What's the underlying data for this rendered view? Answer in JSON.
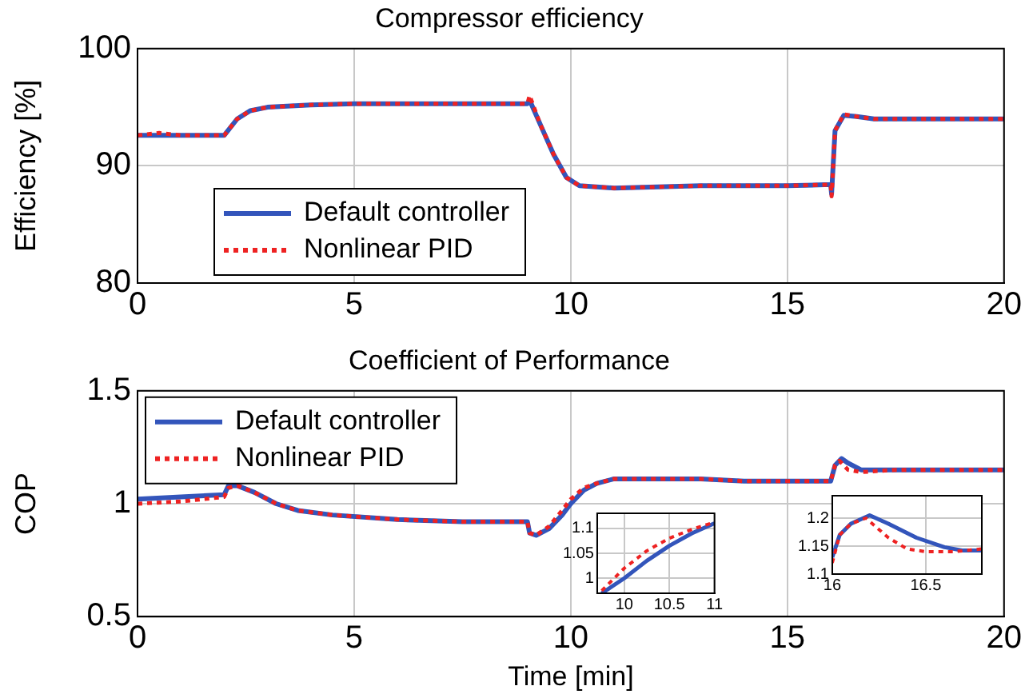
{
  "chart_data": [
    {
      "type": "line",
      "title": "Compressor efficiency",
      "ylabel": "Efficiency [%]",
      "xlim": [
        0,
        20
      ],
      "xticks": [
        0,
        5,
        10,
        15,
        20
      ],
      "ylim": [
        80,
        100
      ],
      "yticks": [
        80,
        90,
        100
      ],
      "grid": true,
      "legend": "bottom left",
      "series": [
        {
          "name": "Default controller",
          "color": "#3355bb",
          "line_style": "solid",
          "x": [
            0,
            1,
            2,
            2.3,
            2.6,
            3,
            4,
            5,
            7,
            9,
            9.05,
            9.3,
            9.6,
            9.9,
            10.2,
            11,
            12,
            13,
            14,
            15,
            16,
            16.02,
            16.1,
            16.3,
            16.6,
            17,
            18,
            19,
            20
          ],
          "values": [
            92.6,
            92.6,
            92.6,
            94,
            94.7,
            95,
            95.2,
            95.3,
            95.3,
            95.3,
            95.6,
            93.5,
            91,
            89,
            88.3,
            88.1,
            88.2,
            88.3,
            88.3,
            88.3,
            88.4,
            87.6,
            93,
            94.3,
            94.2,
            94,
            94,
            94,
            94
          ]
        },
        {
          "name": "Nonlinear PID",
          "color": "#ee2222",
          "line_style": "dotted",
          "x": [
            0,
            0.5,
            1,
            2,
            2.3,
            2.6,
            3,
            4,
            5,
            7,
            9,
            9.05,
            9.3,
            9.6,
            9.9,
            10.2,
            11,
            12,
            13,
            14,
            15,
            16,
            16.02,
            16.1,
            16.3,
            16.6,
            17,
            18,
            19,
            20
          ],
          "values": [
            92.6,
            92.8,
            92.6,
            92.6,
            94,
            94.7,
            95,
            95.2,
            95.3,
            95.3,
            95.3,
            96,
            93.5,
            91,
            89,
            88.3,
            88.1,
            88.2,
            88.3,
            88.3,
            88.3,
            88.4,
            87.4,
            93,
            94.4,
            94.2,
            94,
            94,
            94,
            94
          ]
        }
      ]
    },
    {
      "type": "line",
      "title": "Coefficient of Performance",
      "xlabel": "Time [min]",
      "ylabel": "COP",
      "xlim": [
        0,
        20
      ],
      "xticks": [
        0,
        5,
        10,
        15,
        20
      ],
      "ylim": [
        0.5,
        1.5
      ],
      "yticks": [
        0.5,
        1,
        1.5
      ],
      "grid": true,
      "legend": "top left",
      "series": [
        {
          "name": "Default controller",
          "color": "#3355bb",
          "line_style": "solid",
          "x": [
            0,
            1,
            2,
            2.1,
            2.3,
            2.7,
            3.2,
            3.7,
            4.5,
            6,
            7.5,
            9,
            9.05,
            9.2,
            9.5,
            9.8,
            10,
            10.3,
            10.6,
            11,
            12,
            13,
            14,
            15,
            16,
            16.1,
            16.25,
            16.4,
            16.7,
            17.5,
            20
          ],
          "values": [
            1.02,
            1.03,
            1.04,
            1.08,
            1.08,
            1.05,
            1.0,
            0.97,
            0.95,
            0.93,
            0.92,
            0.92,
            0.87,
            0.86,
            0.89,
            0.95,
            1.0,
            1.06,
            1.09,
            1.11,
            1.11,
            1.11,
            1.1,
            1.1,
            1.1,
            1.17,
            1.2,
            1.18,
            1.15,
            1.15,
            1.15
          ]
        },
        {
          "name": "Nonlinear PID",
          "color": "#ee2222",
          "line_style": "dotted",
          "x": [
            0,
            1,
            2,
            2.1,
            2.3,
            2.7,
            3.2,
            3.7,
            4.5,
            6,
            7.5,
            9,
            9.05,
            9.2,
            9.5,
            9.8,
            10,
            10.3,
            10.6,
            11,
            12,
            13,
            14,
            15,
            16,
            16.1,
            16.2,
            16.4,
            16.7,
            17.5,
            20
          ],
          "values": [
            1.0,
            1.01,
            1.03,
            1.07,
            1.08,
            1.05,
            1.0,
            0.97,
            0.95,
            0.93,
            0.92,
            0.92,
            0.87,
            0.86,
            0.9,
            0.97,
            1.02,
            1.07,
            1.09,
            1.11,
            1.11,
            1.11,
            1.1,
            1.1,
            1.1,
            1.17,
            1.19,
            1.15,
            1.14,
            1.15,
            1.15
          ]
        }
      ]
    },
    {
      "type": "line",
      "xlim": [
        9.7,
        11
      ],
      "xticks": [
        10,
        10.5,
        11
      ],
      "ylim": [
        0.97,
        1.13
      ],
      "yticks": [
        1,
        1.05,
        1.1
      ],
      "grid": true,
      "series": [
        {
          "color": "#3355bb",
          "line_style": "solid",
          "x": [
            9.75,
            10,
            10.25,
            10.5,
            10.75,
            11
          ],
          "values": [
            0.97,
            1.0,
            1.035,
            1.065,
            1.09,
            1.11
          ]
        },
        {
          "color": "#ee2222",
          "line_style": "dotted",
          "x": [
            9.75,
            10,
            10.25,
            10.5,
            10.75,
            11
          ],
          "values": [
            0.975,
            1.02,
            1.055,
            1.08,
            1.098,
            1.112
          ]
        }
      ]
    },
    {
      "type": "line",
      "xlim": [
        16,
        16.8
      ],
      "xticks": [
        16,
        16.5
      ],
      "ylim": [
        1.1,
        1.24
      ],
      "yticks": [
        1.1,
        1.15,
        1.2
      ],
      "grid": true,
      "series": [
        {
          "color": "#3355bb",
          "line_style": "solid",
          "x": [
            16,
            16.04,
            16.1,
            16.2,
            16.3,
            16.45,
            16.6,
            16.7,
            16.8
          ],
          "values": [
            1.13,
            1.17,
            1.19,
            1.205,
            1.19,
            1.165,
            1.148,
            1.142,
            1.142
          ]
        },
        {
          "color": "#ee2222",
          "line_style": "dotted",
          "x": [
            16,
            16.04,
            16.1,
            16.18,
            16.3,
            16.4,
            16.5,
            16.65,
            16.8
          ],
          "values": [
            1.12,
            1.17,
            1.19,
            1.2,
            1.165,
            1.145,
            1.14,
            1.14,
            1.145
          ]
        }
      ]
    }
  ]
}
